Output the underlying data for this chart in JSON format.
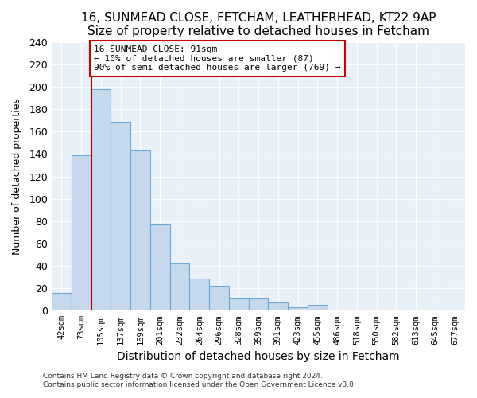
{
  "title": "16, SUNMEAD CLOSE, FETCHAM, LEATHERHEAD, KT22 9AP",
  "subtitle": "Size of property relative to detached houses in Fetcham",
  "xlabel": "Distribution of detached houses by size in Fetcham",
  "ylabel": "Number of detached properties",
  "bin_labels": [
    "42sqm",
    "73sqm",
    "105sqm",
    "137sqm",
    "169sqm",
    "201sqm",
    "232sqm",
    "264sqm",
    "296sqm",
    "328sqm",
    "359sqm",
    "391sqm",
    "423sqm",
    "455sqm",
    "486sqm",
    "518sqm",
    "550sqm",
    "582sqm",
    "613sqm",
    "645sqm",
    "677sqm"
  ],
  "bar_heights": [
    16,
    139,
    198,
    169,
    143,
    77,
    42,
    29,
    22,
    11,
    11,
    7,
    3,
    5,
    0,
    1,
    0,
    0,
    0,
    0,
    1
  ],
  "bar_color": "#c5d8ee",
  "bar_edge_color": "#6aaad4",
  "vline_color": "#cc0000",
  "vline_x": 1.5,
  "annotation_line1": "16 SUNMEAD CLOSE: 91sqm",
  "annotation_line2": "← 10% of detached houses are smaller (87)",
  "annotation_line3": "90% of semi-detached houses are larger (769) →",
  "annotation_box_edgecolor": "#cc0000",
  "ylim": [
    0,
    240
  ],
  "yticks": [
    0,
    20,
    40,
    60,
    80,
    100,
    120,
    140,
    160,
    180,
    200,
    220,
    240
  ],
  "footer_line1": "Contains HM Land Registry data © Crown copyright and database right 2024.",
  "footer_line2": "Contains public sector information licensed under the Open Government Licence v3.0.",
  "bg_color": "#ffffff",
  "plot_bg_color": "#e8f0f8",
  "grid_color": "#ffffff",
  "title_fontsize": 11,
  "subtitle_fontsize": 9
}
